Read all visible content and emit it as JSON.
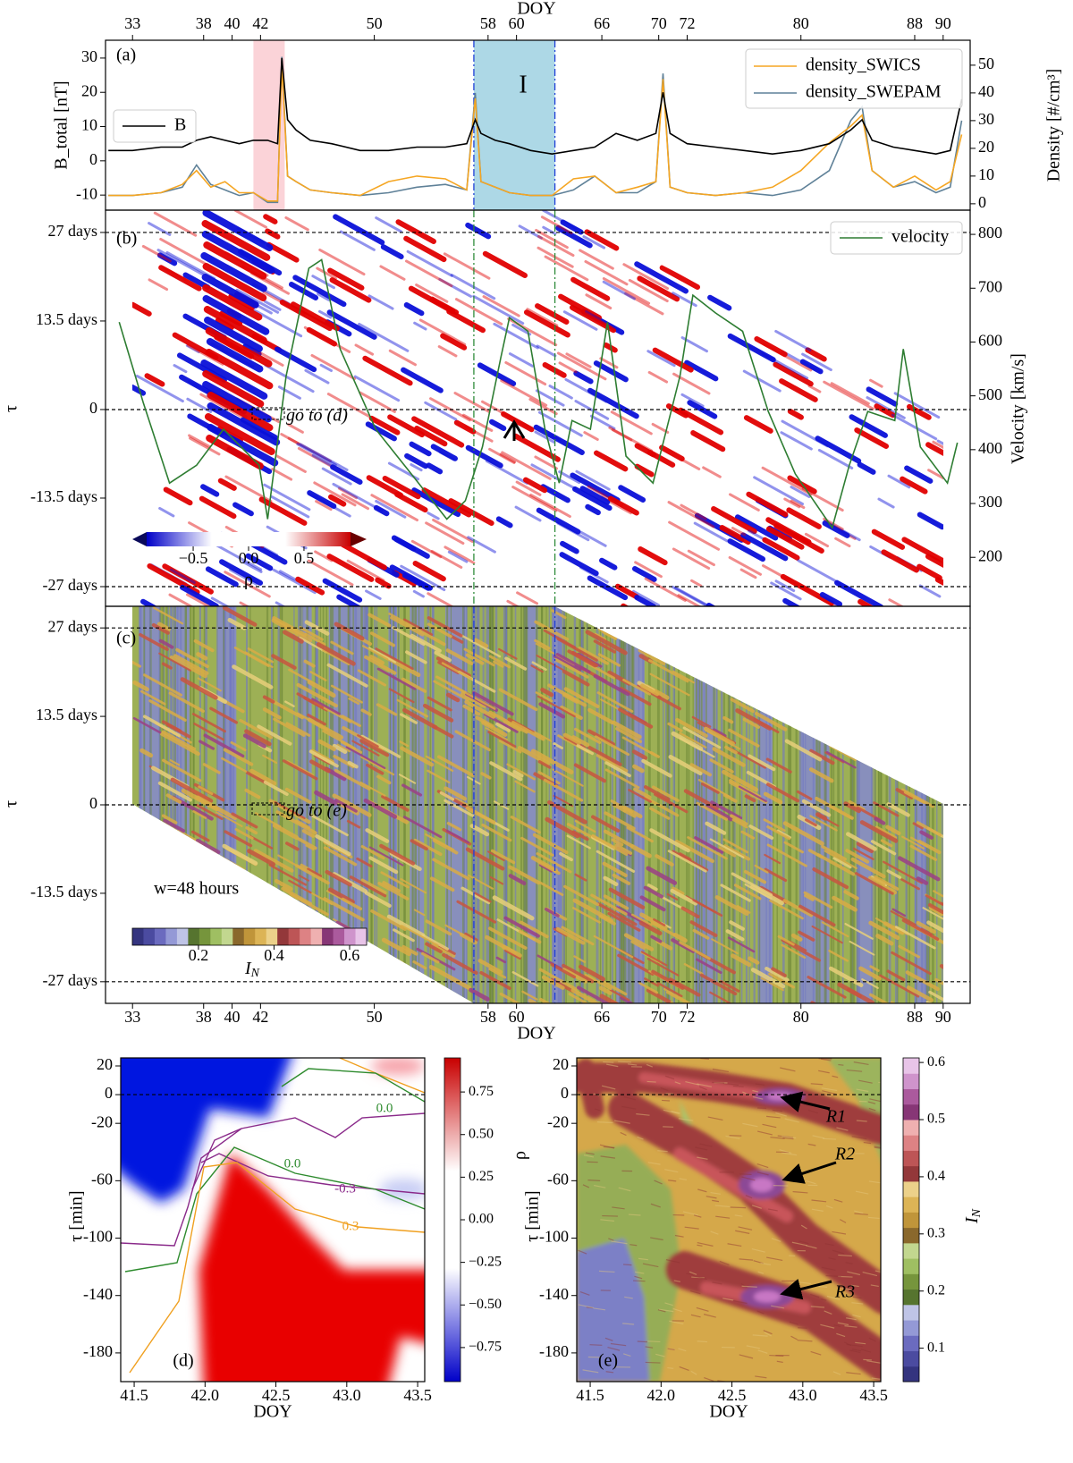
{
  "chart_data": [
    {
      "type": "line",
      "panel_label": "(a)",
      "xlabel": "DOY",
      "xlim": [
        31.1,
        91.9
      ],
      "xticks": [
        33,
        38,
        40,
        42,
        50,
        58,
        60,
        66,
        70,
        72,
        80,
        88,
        90
      ],
      "ylabel": "B_total [nT]",
      "ylim": [
        -14.4,
        35.2
      ],
      "yticks": [
        -10,
        0,
        10,
        20,
        30
      ],
      "y2label": "Density [#/cm³]",
      "y2lim": [
        -2.3,
        59
      ],
      "y2ticks": [
        0,
        10,
        20,
        30,
        40,
        50
      ],
      "x": [
        31.3,
        33,
        35,
        36.5,
        37.5,
        38.5,
        39.5,
        40.5,
        41.5,
        42.5,
        43.2,
        43.5,
        43.9,
        44.5,
        45.5,
        47,
        49,
        51,
        53,
        55,
        56.5,
        57.1,
        57.5,
        58.5,
        59.5,
        61,
        62.5,
        64,
        65.5,
        67,
        68.5,
        69.8,
        70.3,
        70.8,
        72,
        74,
        76,
        78,
        80,
        82,
        83.5,
        84.3,
        85,
        86.5,
        88,
        89.5,
        90.5,
        91.3
      ],
      "series": [
        {
          "name": "B",
          "color": "#000000",
          "axis": "y",
          "values": [
            3,
            3,
            4,
            4,
            6,
            7,
            6,
            5,
            6,
            6,
            5,
            30,
            12,
            9,
            6,
            5,
            3,
            3,
            4,
            4,
            5,
            12,
            8,
            6,
            5,
            3,
            2,
            3,
            4,
            8,
            6,
            8,
            20,
            8,
            5,
            4,
            3,
            2,
            3,
            5,
            9,
            12,
            6,
            4,
            3,
            2,
            3,
            18
          ]
        },
        {
          "name": "density_SWICS",
          "color": "#f5a623",
          "axis": "y2",
          "values": [
            3,
            3,
            4,
            7,
            12,
            6,
            8,
            4,
            4,
            1,
            1,
            50,
            10,
            8,
            5,
            4,
            3,
            8,
            10,
            9,
            5,
            38,
            8,
            6,
            4,
            3,
            3,
            9,
            10,
            4,
            6,
            8,
            45,
            6,
            4,
            3,
            4,
            6,
            12,
            22,
            28,
            32,
            12,
            6,
            10,
            5,
            8,
            25
          ]
        },
        {
          "name": "density_SWEPAM",
          "color": "#5f8198",
          "axis": "y2",
          "values": [
            3,
            3,
            4,
            6,
            14,
            7,
            5,
            3,
            4,
            0.5,
            0.5,
            53,
            10,
            8,
            5,
            4,
            3,
            4,
            6,
            7,
            5,
            40,
            8,
            6,
            4,
            3,
            3,
            5,
            10,
            4,
            4,
            8,
            47,
            6,
            4,
            3,
            4,
            3,
            5,
            12,
            30,
            35,
            12,
            6,
            8,
            4,
            6,
            30
          ]
        }
      ],
      "highlights": [
        {
          "xlim": [
            41.5,
            43.7
          ],
          "color": "#fbd3d8"
        },
        {
          "xlim": [
            57,
            62.7
          ],
          "color": "#add8e6"
        }
      ],
      "vlines": [
        57,
        62.7
      ],
      "annotation": "I"
    },
    {
      "type": "heatmap_line",
      "panel_label": "(b)",
      "xlim": [
        31.1,
        91.9
      ],
      "ylabel": "τ",
      "ylim": [
        -30,
        30.4
      ],
      "yticks": [
        {
          "value": 27,
          "label": "27 days"
        },
        {
          "value": 13.5,
          "label": "13.5 days"
        },
        0,
        {
          "value": -13.5,
          "label": "-13.5 days"
        },
        {
          "value": -27,
          "label": "-27 days"
        }
      ],
      "hlines": [
        27,
        0,
        -27
      ],
      "y2label": "Velocity [km/s]",
      "y2lim": [
        109,
        845
      ],
      "y2ticks": [
        200,
        300,
        400,
        500,
        600,
        700,
        800
      ],
      "x": [
        32.06,
        33.75,
        35.6,
        37.5,
        39.4,
        41.9,
        42.5,
        43.8,
        45.4,
        46.3,
        47.6,
        50.1,
        52.6,
        55.1,
        56.4,
        57.6,
        58.9,
        59.5,
        60.8,
        62,
        63,
        63.9,
        65.2,
        66.4,
        67.7,
        69.6,
        71.5,
        72.4,
        74,
        75.9,
        77.7,
        79.6,
        82.2,
        83.4,
        84.7,
        86.6,
        87.2,
        88.4,
        90.3,
        91
      ],
      "series": [
        {
          "name": "velocity",
          "color": "#2e7d32",
          "axis": "y2",
          "values": [
            637,
            488,
            338,
            371,
            438,
            371,
            271,
            537,
            737,
            753,
            587,
            438,
            355,
            271,
            305,
            405,
            571,
            645,
            620,
            438,
            338,
            454,
            438,
            637,
            388,
            338,
            537,
            687,
            654,
            620,
            471,
            355,
            255,
            371,
            471,
            454,
            587,
            405,
            338,
            413
          ]
        }
      ],
      "colorbar": {
        "label": "ρ",
        "lim": [
          -0.92,
          0.92
        ],
        "ticks": [
          {
            "value": -0.5,
            "label": "−0.5"
          },
          {
            "value": 0,
            "label": "0.0"
          },
          0.5
        ]
      },
      "annotation": "go to (d)"
    },
    {
      "type": "heatmap",
      "panel_label": "(c)",
      "xlabel": "DOY",
      "xlim": [
        31.1,
        91.9
      ],
      "xticks": [
        33,
        38,
        40,
        42,
        50,
        58,
        60,
        66,
        70,
        72,
        80,
        88,
        90
      ],
      "ylabel": "τ",
      "ylim": [
        -30.3,
        30.3
      ],
      "yticks": [
        {
          "value": 27,
          "label": "27 days"
        },
        {
          "value": 13.5,
          "label": "13.5 days"
        },
        0,
        {
          "value": -13.5,
          "label": "-13.5 days"
        },
        {
          "value": -27,
          "label": "-27 days"
        }
      ],
      "hlines": [
        27,
        0,
        -27
      ],
      "annotations": [
        "go to (e)",
        "w=48 hours"
      ],
      "colorbar": {
        "label": "I",
        "label_sub": "N",
        "lim": [
          0.025,
          0.645
        ],
        "ticks": [
          0.2,
          0.4,
          0.6
        ]
      }
    },
    {
      "type": "heatmap",
      "panel_label": "(d)",
      "xlabel": "DOY",
      "xlim": [
        41.405,
        43.55
      ],
      "xticks": [
        41.5,
        {
          "value": 42,
          "label": "42.0"
        },
        42.5,
        {
          "value": 43,
          "label": "43.0"
        },
        43.5
      ],
      "ylabel": "τ [min]",
      "ylim": [
        -200,
        25.6
      ],
      "yticks": [
        20,
        0,
        -20,
        -60,
        -100,
        -140,
        -180
      ],
      "hlines": [
        0
      ],
      "contour_labels": [
        "0.0",
        "0.0",
        "-0.3",
        "0.3"
      ],
      "colorbar": {
        "lim": [
          -0.95,
          0.95
        ],
        "ticks": [
          0.75,
          {
            "value": 0.5,
            "label": "0.50"
          },
          0.25,
          {
            "value": 0,
            "label": "0.00"
          },
          {
            "value": -0.25,
            "label": "−0.25"
          },
          {
            "value": -0.5,
            "label": "−0.50"
          },
          {
            "value": -0.75,
            "label": "−0.75"
          }
        ]
      }
    },
    {
      "type": "heatmap",
      "panel_label": "(e)",
      "xlabel": "DOY",
      "xlim": [
        41.405,
        43.55
      ],
      "xticks": [
        41.5,
        {
          "value": 42,
          "label": "42.0"
        },
        42.5,
        {
          "value": 43,
          "label": "43.0"
        },
        43.5
      ],
      "ylabel": "τ [min]",
      "ylabel_overlay": "ρ",
      "ylim": [
        -200,
        25.6
      ],
      "yticks": [
        20,
        0,
        -20,
        -60,
        -100,
        -140,
        -180
      ],
      "hlines": [
        0
      ],
      "annotations": [
        "R1",
        "R2",
        "R3"
      ],
      "colorbar": {
        "label": "I",
        "label_sub": "N",
        "lim": [
          0.0415,
          0.608
        ],
        "ticks": [
          0.6,
          0.5,
          0.4,
          0.3,
          0.2,
          0.1
        ]
      }
    }
  ]
}
